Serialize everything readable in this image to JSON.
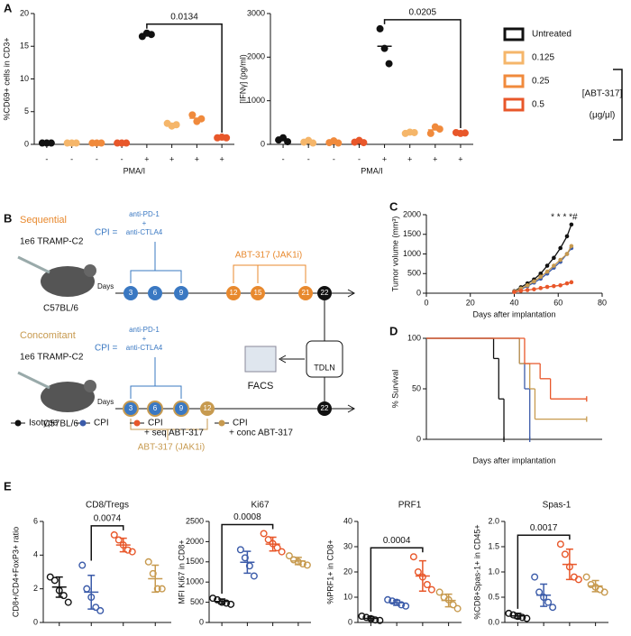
{
  "panel_labels": [
    "A",
    "B",
    "C",
    "D",
    "E"
  ],
  "chart_data": [
    {
      "type": "dot",
      "y_label": "%CD69+ cells in CD3+",
      "x_label": "PMA/I",
      "annotation": "0.0134",
      "categories": [
        "-",
        "-",
        "-",
        "-",
        "+",
        "+",
        "+",
        "+"
      ],
      "colors": [
        "#111111",
        "#f5b66a",
        "#f08a3c",
        "#e8572a",
        "#111111",
        "#f5b66a",
        "#f08a3c",
        "#e8572a"
      ],
      "points": [
        [
          0.2,
          0.2,
          0.2
        ],
        [
          0.2,
          0.2,
          0.2
        ],
        [
          0.2,
          0.2,
          0.2
        ],
        [
          0.2,
          0.2,
          0.2
        ],
        [
          16.5,
          17,
          16.8
        ],
        [
          3.2,
          2.8,
          3.0
        ],
        [
          4.5,
          3.5,
          3.9
        ],
        [
          1.0,
          1.1,
          1.0
        ]
      ],
      "means": [
        0.2,
        0.2,
        0.2,
        0.2,
        16.8,
        3.0,
        4.0,
        1.0
      ],
      "ylim": [
        0,
        20
      ],
      "yticks": [
        0,
        5,
        10,
        15,
        20
      ]
    },
    {
      "type": "dot",
      "y_label": "[IFNγ] (pg/ml)",
      "x_label": "PMA/I",
      "annotation": "0.0205",
      "categories": [
        "-",
        "-",
        "-",
        "-",
        "+",
        "+",
        "+",
        "+"
      ],
      "colors": [
        "#111111",
        "#f5b66a",
        "#f08a3c",
        "#e8572a",
        "#111111",
        "#f5b66a",
        "#f08a3c",
        "#e8572a"
      ],
      "points": [
        [
          100,
          150,
          60
        ],
        [
          50,
          90,
          30
        ],
        [
          40,
          80,
          30
        ],
        [
          50,
          90,
          40
        ],
        [
          2650,
          2200,
          1850
        ],
        [
          250,
          280,
          270
        ],
        [
          250,
          400,
          350
        ],
        [
          270,
          250,
          260
        ]
      ],
      "means": [
        100,
        60,
        50,
        60,
        2250,
        265,
        330,
        260
      ],
      "ylim": [
        0,
        3000
      ],
      "yticks": [
        0,
        1000,
        2000,
        3000
      ]
    },
    {
      "type": "line",
      "y_label": "Tumor volume (mm³)",
      "x_label": "Days after implantation",
      "annotation": "* * * *#",
      "x": [
        40,
        43,
        46,
        49,
        52,
        55,
        58,
        61,
        64,
        66
      ],
      "series": [
        {
          "color": "#111111",
          "values": [
            50,
            150,
            250,
            350,
            500,
            700,
            900,
            1150,
            1450,
            1750
          ]
        },
        {
          "color": "#3b5ba9",
          "values": [
            40,
            100,
            180,
            270,
            370,
            500,
            650,
            800,
            1000,
            1150
          ]
        },
        {
          "color": "#c79a4f",
          "values": [
            40,
            120,
            200,
            300,
            420,
            550,
            700,
            850,
            1000,
            1200
          ]
        },
        {
          "color": "#e8572a",
          "values": [
            30,
            60,
            80,
            100,
            130,
            160,
            180,
            200,
            250,
            280
          ]
        }
      ],
      "xlim": [
        0,
        80
      ],
      "xticks": [
        0,
        20,
        40,
        60,
        80
      ],
      "ylim": [
        0,
        2000
      ],
      "yticks": [
        0,
        500,
        1000,
        1500,
        2000
      ]
    },
    {
      "type": "survival",
      "y_label": "% Survival",
      "x_label": "Days after implantation",
      "series": [
        {
          "color": "#111111",
          "x": [
            0,
            65,
            70,
            75
          ],
          "values": [
            100,
            80,
            40,
            0
          ]
        },
        {
          "color": "#3b5ba9",
          "x": [
            0,
            90,
            95,
            100
          ],
          "values": [
            100,
            75,
            50,
            0
          ]
        },
        {
          "color": "#c79a4f",
          "x": [
            0,
            90,
            100,
            105,
            155
          ],
          "values": [
            100,
            75,
            50,
            20,
            20
          ]
        },
        {
          "color": "#e8572a",
          "x": [
            0,
            95,
            110,
            120,
            155
          ],
          "values": [
            100,
            75,
            60,
            40,
            40
          ]
        }
      ],
      "xlim": [
        0,
        170
      ],
      "ylim": [
        0,
        100
      ],
      "yticks": [
        0,
        50,
        100
      ]
    },
    {
      "type": "dot",
      "title": "CD8/Tregs",
      "y_label": "CD8+/CD4+FoxP3+ ratio",
      "annotation": "0.0074",
      "colors": [
        "#111111",
        "#3b5ba9",
        "#e8572a",
        "#c79a4f"
      ],
      "points": [
        [
          2.7,
          2.5,
          1.9,
          1.6,
          1.2
        ],
        [
          3.4,
          2.0,
          1.5,
          0.9,
          0.7
        ],
        [
          5.2,
          4.9,
          4.6,
          4.3,
          4.2
        ],
        [
          3.6,
          2.9,
          2.0,
          2.0
        ]
      ],
      "means": [
        2.1,
        1.8,
        4.6,
        2.6
      ],
      "sd": [
        0.6,
        1.0,
        0.4,
        0.8
      ],
      "ylim": [
        0,
        6
      ],
      "yticks": [
        0,
        2,
        4,
        6
      ]
    },
    {
      "type": "dot",
      "title": "Ki67",
      "y_label": "MFI Ki67 in CD8+",
      "annotation": "0.0008",
      "colors": [
        "#111111",
        "#3b5ba9",
        "#e8572a",
        "#c79a4f"
      ],
      "points": [
        [
          600,
          560,
          500,
          480,
          450
        ],
        [
          1800,
          1600,
          1400,
          1150
        ],
        [
          2200,
          2050,
          1950,
          1850,
          1750
        ],
        [
          1650,
          1550,
          1500,
          1450,
          1420
        ]
      ],
      "means": [
        520,
        1490,
        1940,
        1520
      ],
      "sd": [
        60,
        270,
        170,
        90
      ],
      "ylim": [
        0,
        2500
      ],
      "yticks": [
        0,
        500,
        1000,
        1500,
        2000,
        2500
      ]
    },
    {
      "type": "dot",
      "title": "PRF1",
      "y_label": "%PRF1+ in CD8+",
      "annotation": "0.0004",
      "colors": [
        "#111111",
        "#3b5ba9",
        "#e8572a",
        "#c79a4f"
      ],
      "points": [
        [
          2.5,
          2,
          1.5,
          1,
          0.8
        ],
        [
          9,
          8.5,
          8,
          7,
          6.5
        ],
        [
          26,
          20,
          18,
          15,
          13
        ],
        [
          12,
          10,
          9,
          7,
          5.5
        ]
      ],
      "means": [
        1.6,
        7.8,
        18.4,
        8.7
      ],
      "sd": [
        0.7,
        1,
        6,
        2.5
      ],
      "ylim": [
        0,
        40
      ],
      "yticks": [
        0,
        10,
        20,
        30,
        40
      ]
    },
    {
      "type": "dot",
      "title": "Spas-1",
      "y_label": "%CD8+Spas-1+ in CD45+",
      "annotation": "0.0017",
      "colors": [
        "#111111",
        "#3b5ba9",
        "#e8572a",
        "#c79a4f"
      ],
      "points": [
        [
          0.18,
          0.15,
          0.12,
          0.1,
          0.08
        ],
        [
          0.9,
          0.6,
          0.5,
          0.4,
          0.3
        ],
        [
          1.55,
          1.35,
          1.1,
          0.9,
          0.85
        ],
        [
          0.9,
          0.75,
          0.7,
          0.65,
          0.6
        ]
      ],
      "means": [
        0.13,
        0.54,
        1.15,
        0.72
      ],
      "sd": [
        0.05,
        0.22,
        0.3,
        0.11
      ],
      "ylim": [
        0,
        2
      ],
      "yticks": [
        {
          "value": 0,
          "label": "0.0"
        },
        {
          "value": 0.5,
          "label": "0.5"
        },
        {
          "value": 1,
          "label": "1.0"
        },
        {
          "value": 1.5,
          "label": "1.5"
        },
        {
          "value": 2,
          "label": "2.0"
        }
      ]
    }
  ],
  "legend_a": {
    "title": "[ABT-317]",
    "unit": "(μg/μl)",
    "entries": [
      {
        "name": "Untreated",
        "color": "#111111"
      },
      {
        "name": "0.125",
        "color": "#f5b66a"
      },
      {
        "name": "0.25",
        "color": "#f08a3c"
      },
      {
        "name": "0.5",
        "color": "#e8572a"
      }
    ]
  },
  "legend_b": [
    {
      "lines": [
        "Isotype"
      ],
      "color": "#111111"
    },
    {
      "lines": [
        "CPI"
      ],
      "color": "#3b5ba9"
    },
    {
      "lines": [
        "CPI",
        "+ seq ABT-317"
      ],
      "color": "#e8572a"
    },
    {
      "lines": [
        "CPI",
        "+ conc ABT-317"
      ],
      "color": "#c79a4f"
    }
  ],
  "diagram": {
    "sequential": "Sequential",
    "concomitant": "Concomitant",
    "cells": "1e6 TRAMP-C2",
    "mouse": "C57BL/6",
    "cpi": "CPI =",
    "anti_pd1": "anti-PD-1",
    "plus": "+",
    "anti_ctla4": "anti-CTLA4",
    "abt": "ABT-317 (JAK1i)",
    "days": "Days",
    "top_days": [
      "3",
      "6",
      "9",
      "12",
      "15",
      "21",
      "22"
    ],
    "bottom_days": [
      "3",
      "6",
      "9",
      "12",
      "22"
    ],
    "tdln": "TDLN",
    "facs": "FACS"
  }
}
